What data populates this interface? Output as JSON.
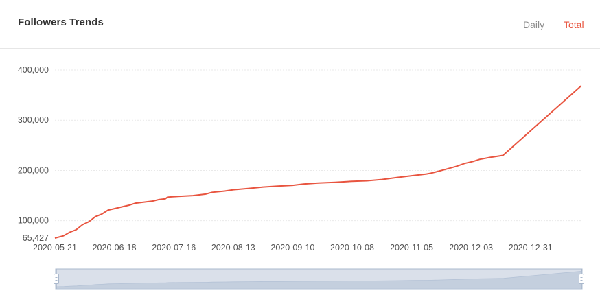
{
  "header": {
    "title": "Followers Trends",
    "tabs": [
      {
        "label": "Daily",
        "active": false
      },
      {
        "label": "Total",
        "active": true
      }
    ]
  },
  "colors": {
    "accent": "#e8543f",
    "grid": "#e9e9e9",
    "slider_fill": "#d3dbe6",
    "slider_border": "#aab8cc",
    "inactive_tab": "#8c8c8c"
  },
  "chart_data": {
    "type": "line",
    "title": "",
    "xlabel": "",
    "ylabel": "",
    "y_ticks": [
      "65,427",
      "100,000",
      "200,000",
      "300,000",
      "400,000"
    ],
    "y_tick_values": [
      65427,
      100000,
      200000,
      300000,
      400000
    ],
    "ylim": [
      65427,
      400000
    ],
    "x_ticks": [
      "2020-05-21",
      "2020-06-18",
      "2020-07-16",
      "2020-08-13",
      "2020-09-10",
      "2020-10-08",
      "2020-11-05",
      "2020-12-03",
      "2020-12-31"
    ],
    "xlim": [
      "2020-05-21",
      "2021-01-24"
    ],
    "grid": true,
    "series": [
      {
        "name": "",
        "points": [
          [
            "2020-05-21",
            65427
          ],
          [
            "2020-05-25",
            70000
          ],
          [
            "2020-05-28",
            77000
          ],
          [
            "2020-05-31",
            82000
          ],
          [
            "2020-06-03",
            92000
          ],
          [
            "2020-06-06",
            98000
          ],
          [
            "2020-06-09",
            108000
          ],
          [
            "2020-06-12",
            113000
          ],
          [
            "2020-06-15",
            121000
          ],
          [
            "2020-06-18",
            124000
          ],
          [
            "2020-06-21",
            127000
          ],
          [
            "2020-06-25",
            131000
          ],
          [
            "2020-06-28",
            135000
          ],
          [
            "2020-07-03",
            137500
          ],
          [
            "2020-07-06",
            139000
          ],
          [
            "2020-07-09",
            142000
          ],
          [
            "2020-07-12",
            143500
          ],
          [
            "2020-07-13",
            147000
          ],
          [
            "2020-07-18",
            148500
          ],
          [
            "2020-07-25",
            150000
          ],
          [
            "2020-07-31",
            153000
          ],
          [
            "2020-08-03",
            156500
          ],
          [
            "2020-08-09",
            159000
          ],
          [
            "2020-08-13",
            161500
          ],
          [
            "2020-08-20",
            164000
          ],
          [
            "2020-08-27",
            167000
          ],
          [
            "2020-09-03",
            169000
          ],
          [
            "2020-09-10",
            170500
          ],
          [
            "2020-09-15",
            173000
          ],
          [
            "2020-09-22",
            175000
          ],
          [
            "2020-09-30",
            176500
          ],
          [
            "2020-10-08",
            178500
          ],
          [
            "2020-10-15",
            179500
          ],
          [
            "2020-10-22",
            182000
          ],
          [
            "2020-10-29",
            186000
          ],
          [
            "2020-11-05",
            189500
          ],
          [
            "2020-11-12",
            193000
          ],
          [
            "2020-11-14",
            194500
          ],
          [
            "2020-11-20",
            201000
          ],
          [
            "2020-11-26",
            208000
          ],
          [
            "2020-11-30",
            214000
          ],
          [
            "2020-12-04",
            218000
          ],
          [
            "2020-12-07",
            222000
          ],
          [
            "2020-12-12",
            226000
          ],
          [
            "2020-12-18",
            230000
          ],
          [
            "2021-01-24",
            369000
          ]
        ]
      }
    ],
    "slider_range": [
      0,
      100
    ]
  }
}
